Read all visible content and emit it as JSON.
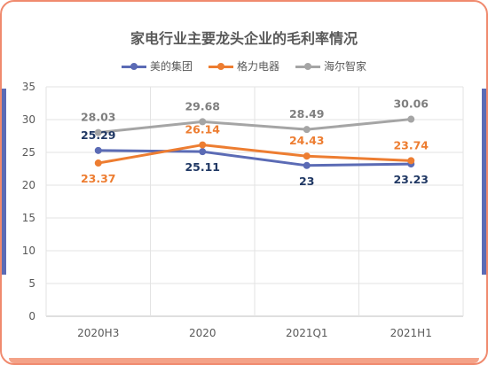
{
  "chart_data": {
    "type": "line",
    "title": "家电行业主要龙头企业的毛利率情况",
    "categories": [
      "2020H3",
      "2020",
      "2021Q1",
      "2021H1"
    ],
    "ylim": [
      0,
      35
    ],
    "yticks": [
      0,
      5,
      10,
      15,
      20,
      25,
      30,
      35
    ],
    "ytick_labels": [
      "0",
      "5",
      "10",
      "15",
      "20",
      "25",
      "30",
      "35"
    ],
    "grid": true,
    "legend_position": "top",
    "series": [
      {
        "name": "美的集团",
        "color": "#5b6bb5",
        "label_color": "#203864",
        "values": [
          25.29,
          25.11,
          23,
          23.23
        ],
        "labels": [
          "25.29",
          "25.11",
          "23",
          "23.23"
        ]
      },
      {
        "name": "格力电器",
        "color": "#ed7d31",
        "label_color": "#ed7d31",
        "values": [
          23.37,
          26.14,
          24.43,
          23.74
        ],
        "labels": [
          "23.37",
          "26.14",
          "24.43",
          "23.74"
        ]
      },
      {
        "name": "海尔智家",
        "color": "#a5a5a5",
        "label_color": "#7f7f7f",
        "values": [
          28.03,
          29.68,
          28.49,
          30.06
        ],
        "labels": [
          "28.03",
          "29.68",
          "28.49",
          "30.06"
        ]
      }
    ]
  }
}
